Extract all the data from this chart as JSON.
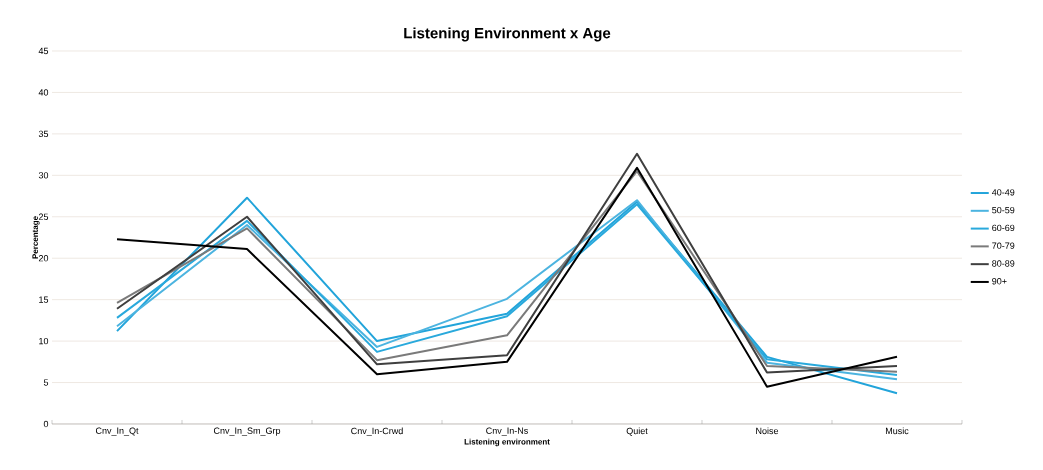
{
  "chart_data": {
    "type": "line",
    "title": "Listening Environment x Age",
    "xlabel": "Listening environment",
    "ylabel": "Percentage",
    "categories": [
      "Cnv_In_Qt",
      "Cnv_In_Sm_Grp",
      "Cnv_In-Crwd",
      "Cnv_In-Ns",
      "Quiet",
      "Noise",
      "Music"
    ],
    "ylim": [
      0,
      45
    ],
    "yticks": [
      0,
      5,
      10,
      15,
      20,
      25,
      30,
      35,
      40,
      45
    ],
    "grid": "y",
    "legend": "right",
    "marker": "none",
    "series": [
      {
        "name": "40-49",
        "color": "#22a4da",
        "values": [
          11.2,
          27.3,
          10.0,
          13.3,
          26.8,
          8.1,
          3.7
        ]
      },
      {
        "name": "50-59",
        "color": "#4cb4e0",
        "values": [
          11.8,
          24.0,
          9.3,
          15.1,
          27.0,
          7.4,
          5.4
        ]
      },
      {
        "name": "60-69",
        "color": "#29a9dc",
        "values": [
          12.8,
          24.5,
          8.7,
          13.0,
          26.5,
          7.8,
          5.9
        ]
      },
      {
        "name": "70-79",
        "color": "#7a7a7a",
        "values": [
          14.6,
          23.6,
          7.7,
          10.7,
          30.5,
          7.0,
          6.3
        ]
      },
      {
        "name": "80-89",
        "color": "#3f3f3f",
        "values": [
          13.9,
          25.0,
          7.2,
          8.3,
          32.6,
          6.2,
          7.0
        ]
      },
      {
        "name": "90+",
        "color": "#000000",
        "values": [
          22.3,
          21.1,
          6.0,
          7.5,
          30.9,
          4.5,
          8.1
        ]
      }
    ]
  }
}
